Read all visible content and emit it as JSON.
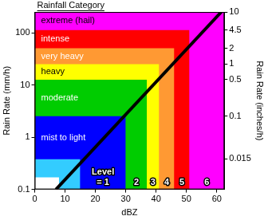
{
  "chart_data": {
    "type": "area",
    "title": "Rainfall Category",
    "x_label": "dBZ",
    "y_label": "Rain Rate (mm/h)",
    "y2_label": "Rain Rate (inches/h)",
    "level_title": "Level",
    "xlim": [
      0,
      62.5
    ],
    "xticks": [
      0,
      10,
      20,
      30,
      40,
      50,
      60
    ],
    "ylim": [
      0.1,
      254
    ],
    "yticks": [
      0.1,
      1,
      10,
      100
    ],
    "y2lim": [
      0.0039,
      10
    ],
    "y2ticks": [
      0.015,
      0.1,
      0.5,
      1,
      2,
      4.5,
      10
    ],
    "log": "y",
    "grid": false,
    "series": [
      {
        "type": "line",
        "color": "#000000",
        "x": [
          7,
          61.5
        ],
        "values": [
          0.1,
          254
        ]
      },
      {
        "type": "area",
        "color": "#ffffff",
        "x": [
          0,
          8
        ],
        "values": [
          0.17,
          0.17
        ]
      },
      {
        "type": "area",
        "color": "#33ccff",
        "x": [
          0,
          15
        ],
        "values": [
          0.38,
          0.38
        ]
      },
      {
        "type": "area",
        "name": "mist to light",
        "color": "#0000ff",
        "x": [
          0,
          30
        ],
        "values": [
          2.54,
          2.54
        ],
        "level": "= 1"
      },
      {
        "type": "area",
        "name": "moderate",
        "color": "#00cc00",
        "x": [
          0,
          37
        ],
        "values": [
          12.7,
          12.7
        ],
        "level": "2"
      },
      {
        "type": "area",
        "name": "heavy",
        "color": "#ffff00",
        "x": [
          0,
          41
        ],
        "values": [
          25.4,
          25.4
        ],
        "level": "3"
      },
      {
        "type": "area",
        "name": "very heavy",
        "color": "#ff9933",
        "x": [
          0,
          46
        ],
        "values": [
          51,
          51
        ],
        "level": "4"
      },
      {
        "type": "area",
        "name": "intense",
        "color": "#ff0000",
        "x": [
          0,
          51
        ],
        "values": [
          114,
          114
        ],
        "level": "5"
      },
      {
        "type": "area",
        "name": "extreme (hail)",
        "color": "#ff00ff",
        "x": [
          0,
          62.5
        ],
        "values": [
          254,
          254
        ],
        "level": "6"
      }
    ]
  }
}
